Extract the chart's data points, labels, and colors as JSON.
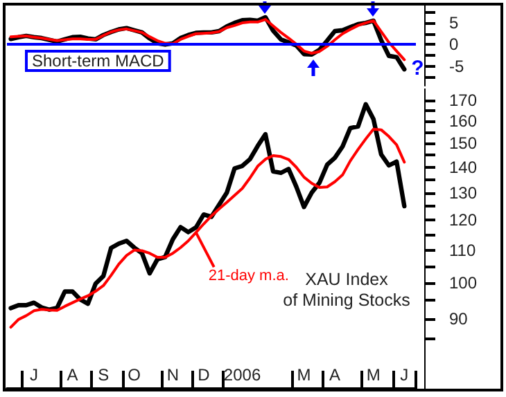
{
  "chart_data": [
    {
      "type": "line",
      "title": "Short-term MACD",
      "annotations": [
        "?"
      ],
      "categories": [
        null,
        null,
        null,
        null,
        null,
        null,
        null,
        null,
        null,
        null,
        null,
        null,
        null,
        null,
        null,
        null,
        null,
        null,
        null,
        null,
        null,
        null,
        null,
        null,
        null,
        null,
        null,
        null,
        null,
        null,
        null,
        null,
        null,
        null,
        null,
        null,
        null,
        null,
        null,
        null,
        null,
        null,
        null,
        null,
        null,
        null,
        null,
        null,
        null,
        null,
        null,
        null,
        null
      ],
      "ylim": [
        -9.5,
        9
      ],
      "yticks": [
        {
          "value": 7.5,
          "label": null
        },
        5,
        {
          "value": 2.5,
          "label": null
        },
        0,
        {
          "value": -2.5,
          "label": null
        },
        -5,
        {
          "value": -7.5,
          "label": null
        }
      ],
      "tick_labels": "y",
      "marker": "none",
      "ref_lines": [
        {
          "axis": "y",
          "value": 0,
          "color": "#0000ff"
        }
      ],
      "series": [
        {
          "color": "#000000",
          "values": [
            1.3,
            1.7,
            2.0,
            1.7,
            1.5,
            1.1,
            0.7,
            1.2,
            1.7,
            1.8,
            1.4,
            1.2,
            2.2,
            2.9,
            3.5,
            3.8,
            3.3,
            2.8,
            1.4,
            0.3,
            0.0,
            0.3,
            1.5,
            2.2,
            2.7,
            2.8,
            2.8,
            3.1,
            4.2,
            5.0,
            5.6,
            5.7,
            5.5,
            6.3,
            3.2,
            1.2,
            0.5,
            -0.2,
            -2.2,
            -2.3,
            -1.2,
            0.9,
            3.1,
            3.3,
            4.0,
            4.7,
            5.0,
            5.5,
            1.0,
            -2.6,
            -2.9,
            -5.7,
            null
          ]
        },
        {
          "color": "#ff0000",
          "values": [
            1.8,
            1.9,
            2.0,
            1.7,
            1.5,
            1.2,
            0.9,
            1.1,
            1.3,
            1.3,
            1.2,
            1.2,
            2.1,
            2.9,
            3.4,
            3.6,
            3.2,
            2.8,
            1.8,
            0.9,
            0.3,
            0.2,
            1.2,
            1.9,
            2.5,
            2.6,
            2.7,
            3.0,
            3.9,
            4.4,
            5.0,
            5.2,
            5.2,
            5.8,
            4.3,
            2.8,
            1.5,
            0.1,
            -1.5,
            -2.0,
            -1.6,
            -0.4,
            1.1,
            2.5,
            3.5,
            4.4,
            5.0,
            5.5,
            3.0,
            0.5,
            -1.5,
            -3.5,
            null
          ]
        }
      ]
    },
    {
      "type": "line",
      "title": "XAU Index\nof Mining Stocks",
      "log": true,
      "marker": "none",
      "categories": [
        null,
        null,
        null,
        "J",
        null,
        null,
        null,
        null,
        "A",
        null,
        null,
        null,
        "S",
        null,
        null,
        null,
        "O",
        null,
        null,
        null,
        null,
        "N",
        null,
        null,
        null,
        "D",
        null,
        null,
        null,
        null,
        "2006",
        null,
        null,
        null,
        null,
        null,
        null,
        null,
        "M",
        null,
        null,
        null,
        "A",
        null,
        null,
        null,
        null,
        "M",
        null,
        null,
        null,
        "J",
        null
      ],
      "ylim": [
        73.5,
        176
      ],
      "yticks": [
        {
          "value": 85,
          "label": null
        },
        90,
        {
          "value": 95,
          "label": null
        },
        100,
        {
          "value": 105,
          "label": null
        },
        110,
        {
          "value": 115,
          "label": null
        },
        120,
        {
          "value": 125,
          "label": null
        },
        130,
        {
          "value": 135,
          "label": null
        },
        140,
        {
          "value": 145,
          "label": null
        },
        150,
        {
          "value": 155,
          "label": null
        },
        160,
        {
          "value": 165,
          "label": null
        },
        170
      ],
      "series": [
        {
          "color": "#000000",
          "values": [
            92.9,
            93.7,
            93.7,
            94.4,
            93.1,
            92.5,
            93.0,
            97.5,
            97.5,
            95.3,
            94.1,
            99.8,
            102,
            110.7,
            112.1,
            113,
            110.8,
            109,
            102.8,
            107.1,
            107.8,
            113.5,
            117.6,
            115.9,
            117.5,
            122,
            121.2,
            125.5,
            130,
            139.5,
            140.5,
            143.3,
            148.9,
            154.1,
            138.3,
            137.7,
            139.3,
            132.3,
            124.7,
            130,
            133.8,
            141,
            143.9,
            148.7,
            156.9,
            157.6,
            168.1,
            161,
            145.3,
            140.7,
            142.3,
            125,
            null
          ]
        },
        {
          "name": "21-day m.a.",
          "color": "#ff0000",
          "values": [
            87.9,
            89.9,
            90.9,
            92.2,
            92.6,
            92.4,
            92.3,
            93.4,
            94.4,
            95.4,
            96.3,
            97.6,
            99.2,
            102.2,
            105.6,
            108.3,
            110,
            109.8,
            109,
            107.7,
            107.7,
            109,
            110.8,
            113,
            115.8,
            118.7,
            121.5,
            124,
            126.4,
            129,
            131.6,
            135.7,
            140.4,
            143.3,
            144.8,
            144.4,
            143.2,
            140,
            136,
            133.6,
            132,
            132.2,
            134.2,
            136.9,
            142.6,
            147.4,
            152,
            156.4,
            156.1,
            153.1,
            149.4,
            142.1,
            null
          ]
        }
      ]
    }
  ]
}
